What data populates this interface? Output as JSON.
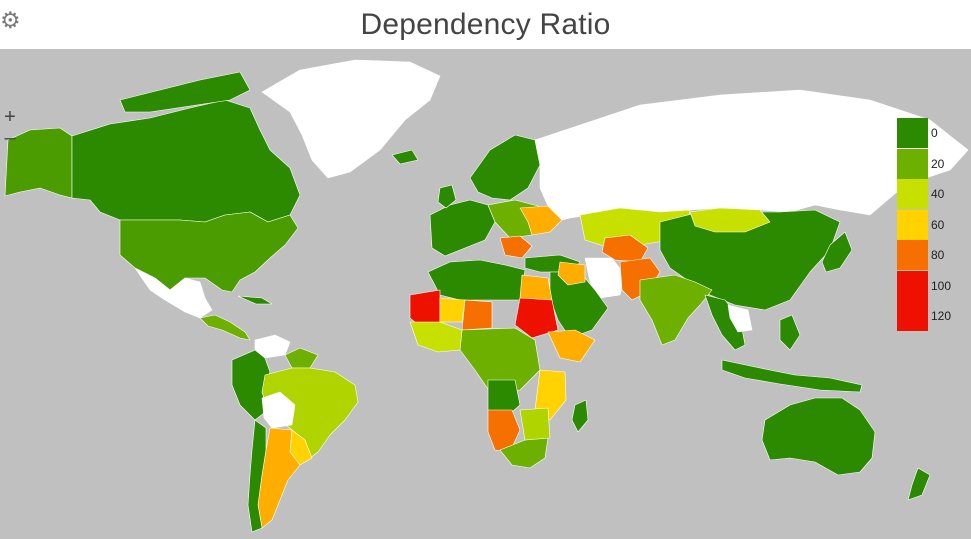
{
  "header": {
    "title": "Dependency Ratio",
    "settings_icon": "gear-icon",
    "settings_glyph": "⚙"
  },
  "controls": {
    "zoom_in_label": "+",
    "zoom_out_label": "–"
  },
  "colors": {
    "ocean": "#c0c0c0",
    "no_data": "#ffffff",
    "border": "#ffffff"
  },
  "legend": {
    "stops": [
      {
        "label": "0",
        "color": "#2b8a00"
      },
      {
        "label": "20",
        "color": "#6db000"
      },
      {
        "label": "40",
        "color": "#c8e000"
      },
      {
        "label": "60",
        "color": "#ffd200"
      },
      {
        "label": "80",
        "color": "#f57000"
      },
      {
        "label": "100",
        "color": "#ee1100"
      },
      {
        "label": "120",
        "color": "#ee1100"
      }
    ]
  }
}
